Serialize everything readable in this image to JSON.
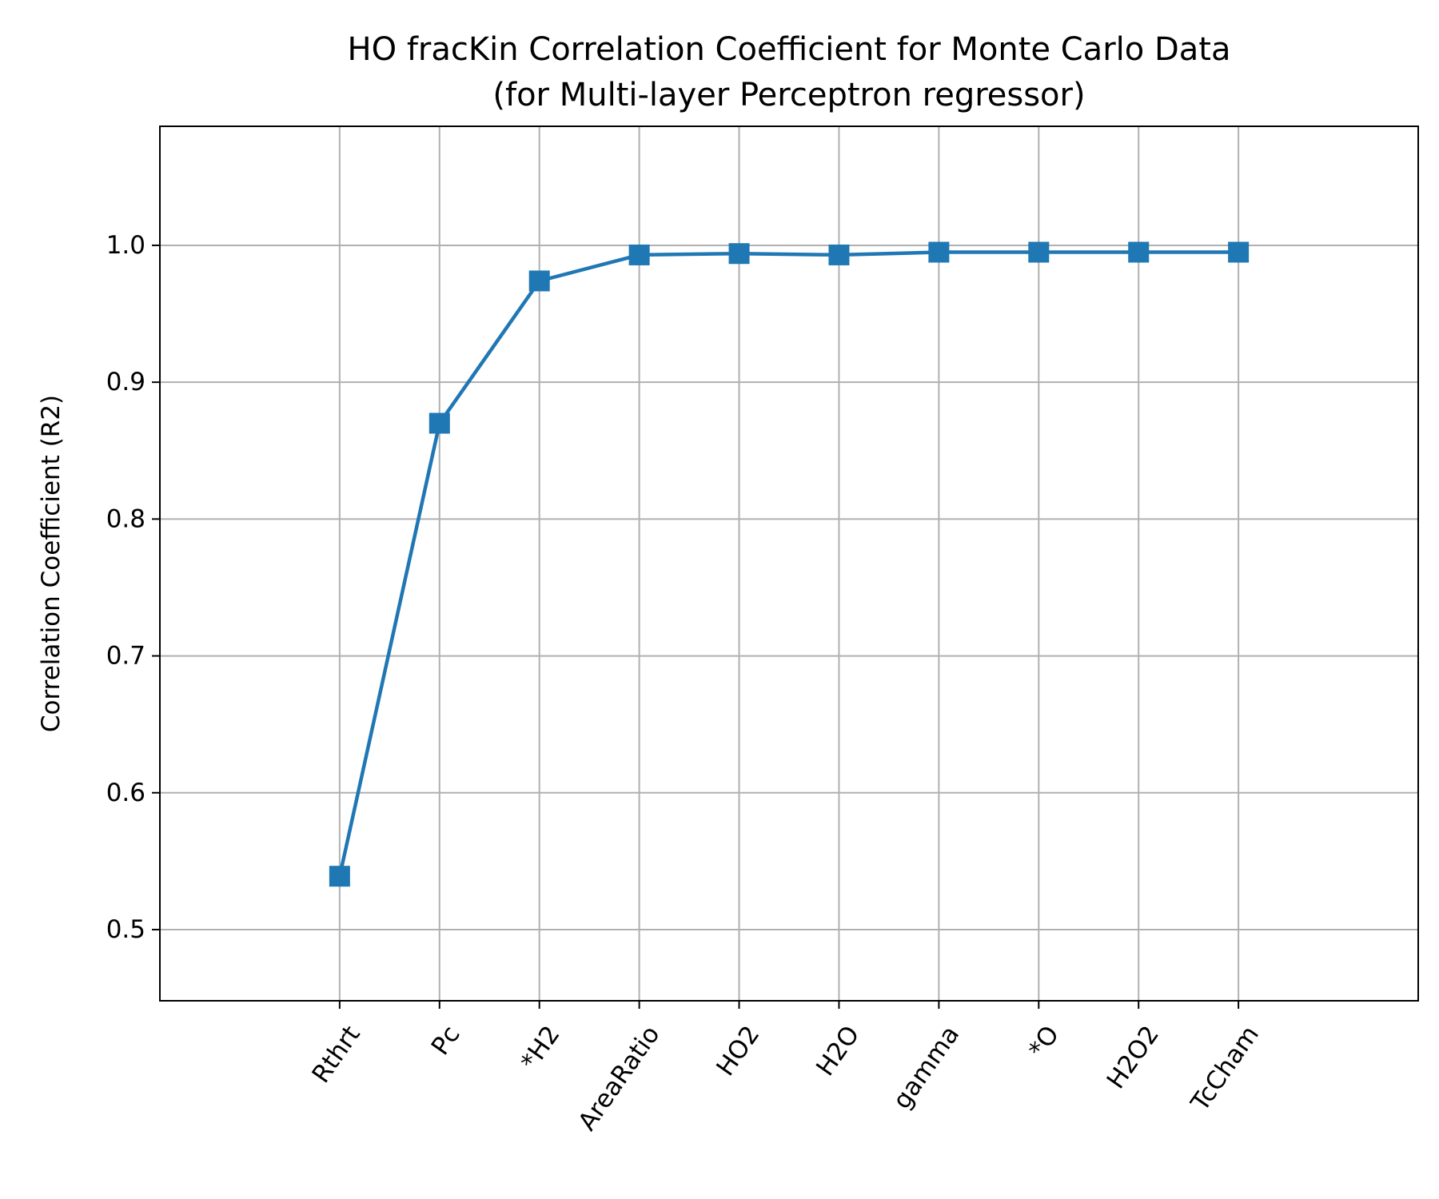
{
  "chart_data": {
    "type": "line",
    "title": [
      "HO fracKin Correlation Coefficient for Monte Carlo Data",
      "(for Multi-layer Perceptron regressor)"
    ],
    "xlabel": "",
    "ylabel": "Correlation Coefficient (R2)",
    "categories": [
      "Rthrt",
      "Pc",
      "*H2",
      "AreaRatio",
      "HO2",
      "H2O",
      "gamma",
      "*O",
      "H2O2",
      "TcCham"
    ],
    "series": [
      {
        "values": [
          0.539,
          0.87,
          0.974,
          0.993,
          0.994,
          0.993,
          0.995,
          0.995,
          0.995,
          0.995
        ],
        "marker": "square",
        "color": "#1f77b4"
      }
    ],
    "ylim": [
      0.448,
      1.087
    ],
    "xlim": [
      -1.8,
      10.8
    ],
    "yticks": [
      0.5,
      0.6,
      0.7,
      0.8,
      0.9,
      1.0
    ],
    "ytick_labels": [
      "0.5",
      "0.6",
      "0.7",
      "0.8",
      "0.9",
      "1.0"
    ],
    "grid": true,
    "legend": "none"
  }
}
